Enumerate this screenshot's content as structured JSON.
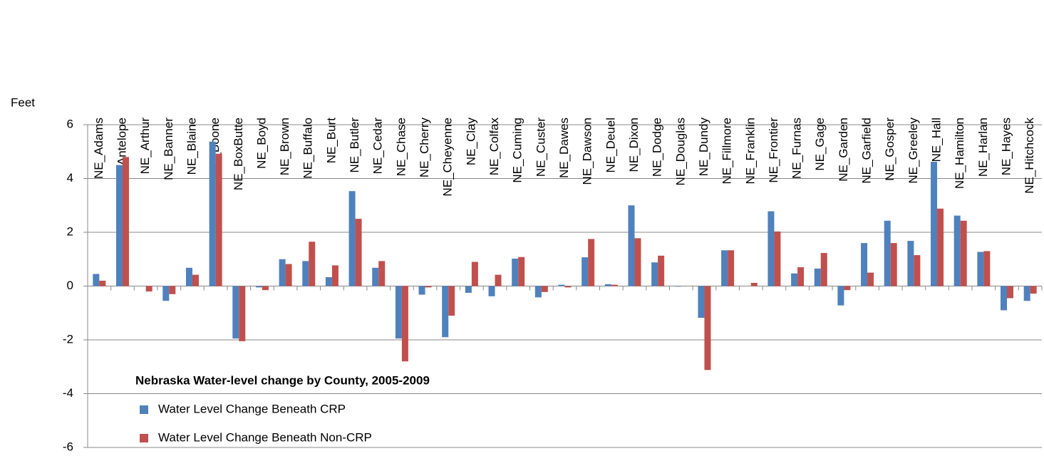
{
  "chart_data": {
    "type": "bar",
    "title": "Nebraska Water-level change by County, 2005-2009",
    "y_label": "Feet",
    "categories": [
      "NE_Adams",
      "NE_Antelope",
      "NE_Arthur",
      "NE_Banner",
      "NE_Blaine",
      "NE_Boone",
      "NE_BoxButte",
      "NE_Boyd",
      "NE_Brown",
      "NE_Buffalo",
      "NE_Burt",
      "NE_Butler",
      "NE_Cedar",
      "NE_Chase",
      "NE_Cherry",
      "NE_Cheyenne",
      "NE_Clay",
      "NE_Colfax",
      "NE_Cuming",
      "NE_Custer",
      "NE_Dawes",
      "NE_Dawson",
      "NE_Deuel",
      "NE_Dixon",
      "NE_Dodge",
      "NE_Douglas",
      "NE_Dundy",
      "NE_Fillmore",
      "NE_Franklin",
      "NE_Frontier",
      "NE_Furnas",
      "NE_Gage",
      "NE_Garden",
      "NE_Garfield",
      "NE_Gosper",
      "NE_Greeley",
      "NE_Hall",
      "NE_Hamilton",
      "NE_Harlan",
      "NE_Hayes",
      "NE_Hitchcock"
    ],
    "series": [
      {
        "name": "Water Level Change Beneath CRP",
        "color": "#4f81bd",
        "values": [
          0.45,
          4.5,
          0,
          -0.55,
          0.68,
          5.37,
          -1.95,
          -0.05,
          1.0,
          0.93,
          0.33,
          3.53,
          0.68,
          -1.95,
          -0.32,
          -1.9,
          -0.25,
          -0.38,
          1.02,
          -0.42,
          0.05,
          1.07,
          0.07,
          3.0,
          0.88,
          -0.02,
          -1.18,
          1.33,
          0,
          2.78,
          0.47,
          0.65,
          -0.72,
          1.6,
          2.43,
          1.68,
          4.62,
          2.62,
          1.27,
          -0.9,
          -0.55
        ]
      },
      {
        "name": "Water Level Change Beneath Non-CRP",
        "color": "#c0504d",
        "values": [
          0.2,
          4.8,
          -0.2,
          -0.3,
          0.42,
          4.92,
          -2.05,
          -0.15,
          0.82,
          1.65,
          0.77,
          2.5,
          0.93,
          -2.8,
          -0.05,
          -1.1,
          0.9,
          0.42,
          1.08,
          -0.22,
          -0.05,
          1.75,
          0.05,
          1.78,
          1.13,
          0,
          -3.12,
          1.33,
          0.12,
          2.03,
          0.7,
          1.23,
          -0.15,
          0.5,
          1.6,
          1.15,
          2.88,
          2.43,
          1.3,
          -0.45,
          -0.28
        ]
      }
    ],
    "ylim": [
      -6,
      6
    ],
    "yticks": [
      -6,
      -4,
      -2,
      0,
      2,
      4,
      6
    ],
    "grid": true
  }
}
